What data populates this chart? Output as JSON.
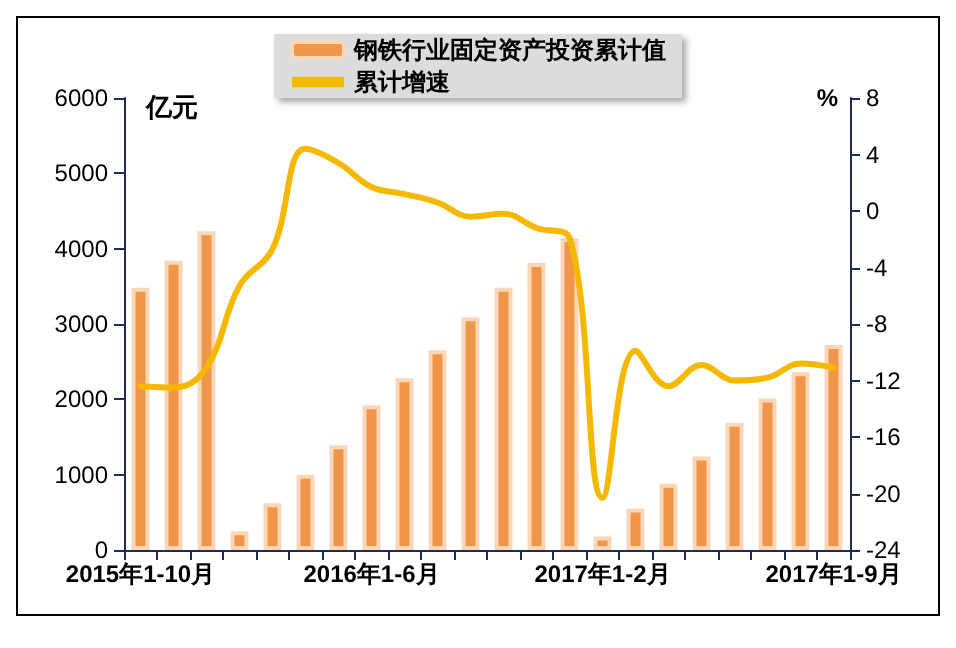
{
  "chart_data": {
    "type": "bar",
    "categories": [
      "2015年1-10月",
      null,
      null,
      null,
      null,
      null,
      null,
      "2016年1-6月",
      null,
      null,
      null,
      null,
      null,
      null,
      "2017年1-2月",
      null,
      null,
      null,
      null,
      null,
      null,
      "2017年1-9月"
    ],
    "ylabel": "亿元",
    "y2label": "%",
    "series": [
      {
        "name": "钢铁行业固定资产投资累计值",
        "color": "#f0964b",
        "values": [
          3480,
          3840,
          4230,
          250,
          620,
          1000,
          1390,
          1920,
          2280,
          2650,
          3090,
          3480,
          3810,
          4140,
          180,
          550,
          880,
          1240,
          1690,
          2010,
          2360,
          2720
        ]
      },
      {
        "name": "累计增速",
        "type": "line",
        "axis": "y2",
        "color": "#f5b800",
        "values": [
          -12.4,
          -12.5,
          -11.1,
          -5.3,
          -2.7,
          4.4,
          3.4,
          1.7,
          1.2,
          0.6,
          -0.4,
          -0.2,
          -1.2,
          -1.9,
          -20.3,
          -9.9,
          -12.4,
          -10.9,
          -12.0,
          -11.8,
          -10.8,
          -11.1
        ]
      }
    ],
    "ylim": [
      0,
      6000
    ],
    "yticks": [
      0,
      1000,
      2000,
      3000,
      4000,
      5000,
      6000
    ],
    "y2lim": [
      -24,
      8
    ],
    "y2ticks": [
      -24,
      -20,
      -16,
      -12,
      -8,
      -4,
      0,
      4,
      8
    ],
    "legend": "top",
    "grid": false,
    "marker": "none",
    "line_style": "solid"
  }
}
